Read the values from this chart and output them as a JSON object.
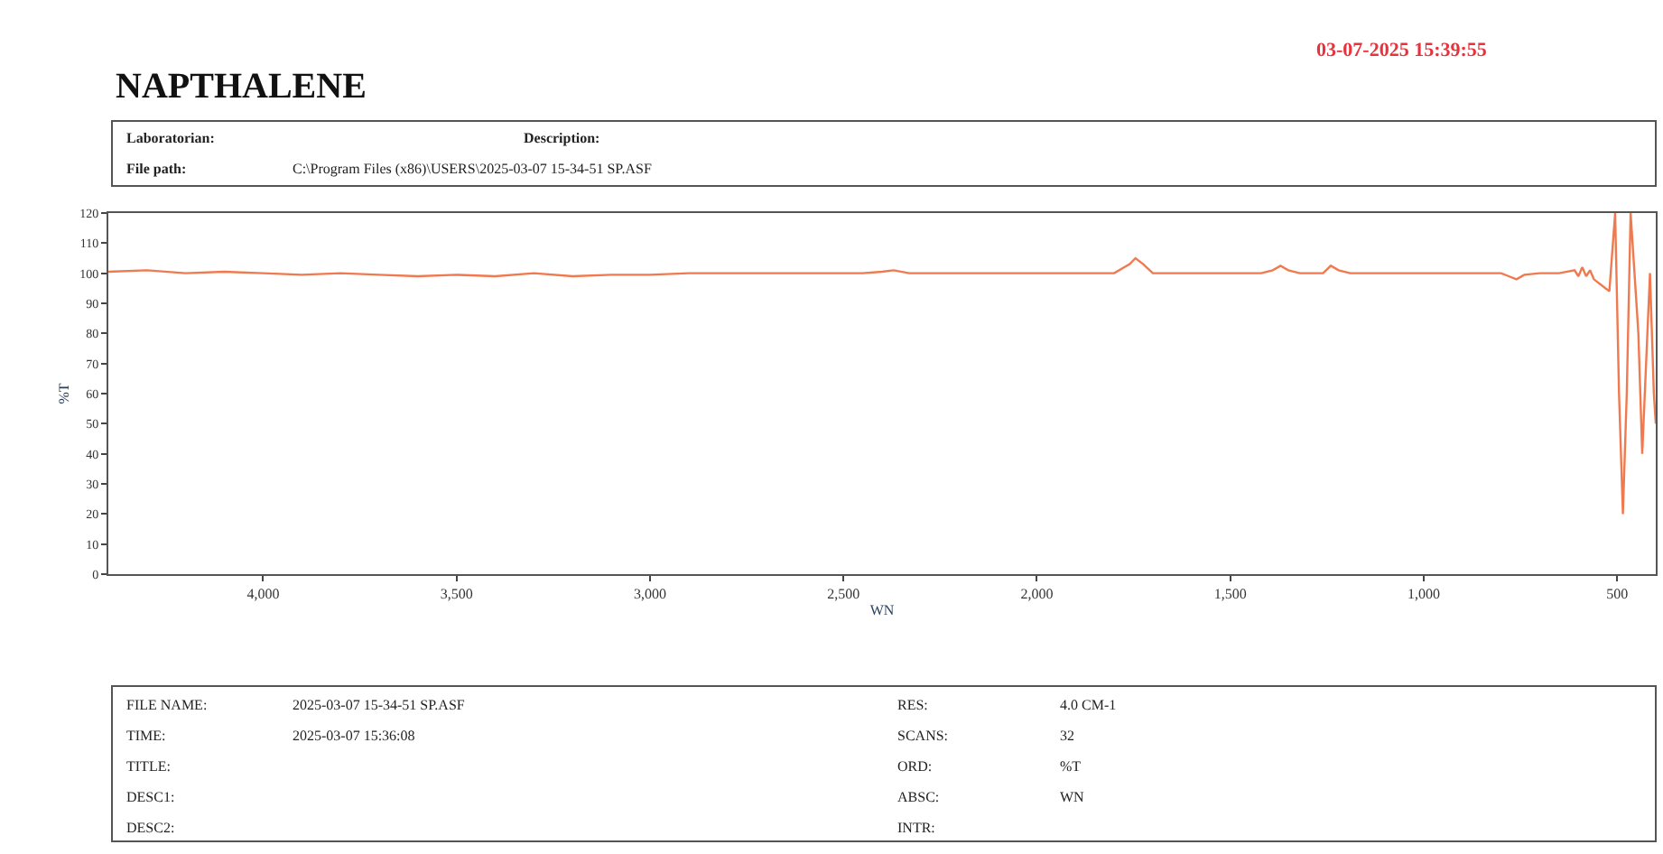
{
  "chart_data": {
    "type": "line",
    "title": "NAPTHALENE",
    "subtitle": "03-07-2025 15:39:55",
    "xlabel": "WN",
    "ylabel": "%T",
    "annotations": [
      "Laboratorian:",
      "Description:",
      "File path:",
      "C:\\Program Files (x86)\\USERS\\2025-03-07 15-34-51 SP.ASF",
      "FILE NAME:",
      "2025-03-07 15-34-51 SP.ASF",
      "TIME:",
      "2025-03-07 15:36:08",
      "TITLE:",
      "DESC1:",
      "DESC2:",
      "RES:",
      "4.0 CM-1",
      "SCANS:",
      "32",
      "ORD:",
      "%T",
      "ABSC:",
      "WN",
      "INTR:"
    ],
    "x": [
      4400,
      4300,
      4200,
      4100,
      4000,
      3900,
      3800,
      3700,
      3600,
      3500,
      3400,
      3300,
      3200,
      3100,
      3000,
      2900,
      2800,
      2600,
      2450,
      2400,
      2370,
      2330,
      2100,
      1800,
      1760,
      1745,
      1725,
      1700,
      1500,
      1420,
      1390,
      1370,
      1350,
      1320,
      1260,
      1240,
      1220,
      1190,
      1000,
      800,
      780,
      760,
      740,
      700,
      650,
      610,
      600,
      590,
      580,
      570,
      560,
      540,
      520,
      505,
      495,
      485,
      475,
      465,
      455,
      445,
      435,
      425,
      415,
      405,
      400
    ],
    "series": [
      {
        "color": "#f07a50",
        "values": [
          100.5,
          101,
          100,
          100.5,
          100,
          99.5,
          100,
          99.5,
          99,
          99.5,
          99,
          100,
          99,
          99.5,
          99.5,
          100,
          100,
          100,
          100,
          100.5,
          101,
          100,
          100,
          100,
          103,
          105,
          103,
          100,
          100,
          100,
          101,
          102.5,
          101,
          100,
          100,
          102.5,
          101,
          100,
          100,
          100,
          99,
          98,
          99.5,
          100,
          100,
          101,
          99,
          102,
          99,
          101,
          98,
          96,
          94,
          120,
          60,
          20,
          60,
          120,
          100,
          80,
          40,
          70,
          100,
          60,
          50
        ]
      }
    ],
    "xlim": [
      4400,
      400
    ],
    "ylim": [
      0,
      120
    ],
    "xticks": [
      {
        "value": 4000,
        "label": "4,000"
      },
      {
        "value": 3500,
        "label": "3,500"
      },
      {
        "value": 3000,
        "label": "3,000"
      },
      {
        "value": 2500,
        "label": "2,500"
      },
      {
        "value": 2000,
        "label": "2,000"
      },
      {
        "value": 1500,
        "label": "1,500"
      },
      {
        "value": 1000,
        "label": "1,000"
      },
      {
        "value": 500,
        "label": "500"
      }
    ],
    "yticks": [
      0,
      10,
      20,
      30,
      40,
      50,
      60,
      70,
      80,
      90,
      100,
      110,
      120
    ],
    "marker": "none",
    "line_style": "solid"
  }
}
